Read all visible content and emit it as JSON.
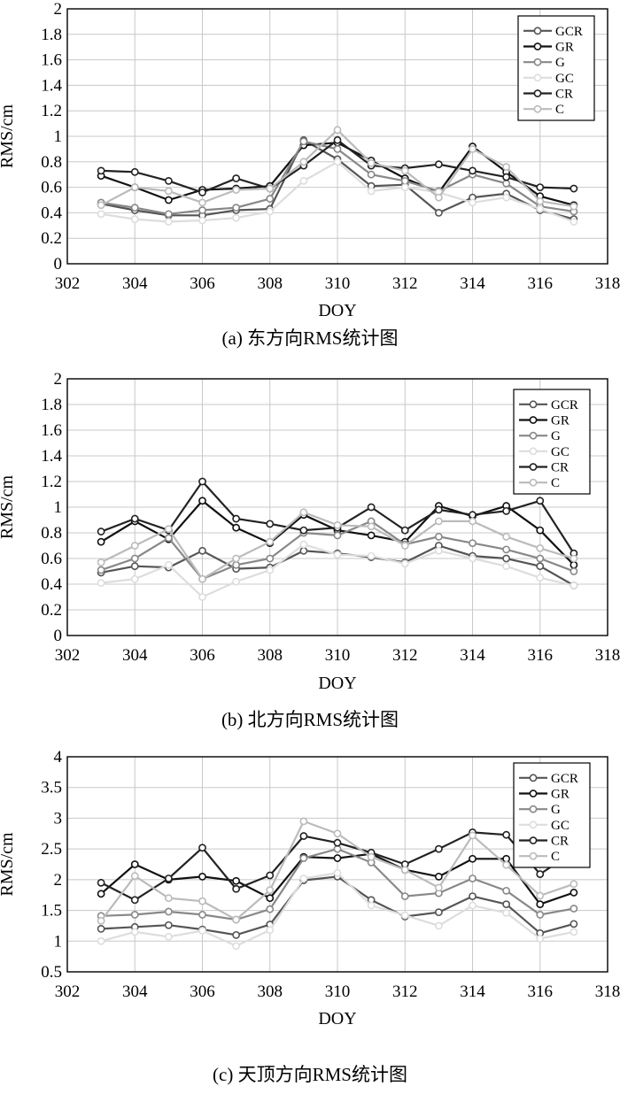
{
  "chart_data": [
    {
      "type": "line",
      "caption": "(a) 东方向RMS统计图",
      "xlabel": "DOY",
      "ylabel": "RMS/cm",
      "xlim": [
        302,
        318
      ],
      "ylim": [
        0,
        2
      ],
      "xticks": [
        "302",
        "304",
        "306",
        "308",
        "310",
        "312",
        "314",
        "316",
        "318"
      ],
      "yticks": [
        "0",
        "0.2",
        "0.4",
        "0.6",
        "0.8",
        "1",
        "1.2",
        "1.4",
        "1.6",
        "1.8",
        "2"
      ],
      "grid": true,
      "legend_position": "top-right",
      "x": [
        303,
        304,
        305,
        306,
        307,
        308,
        309,
        310,
        311,
        312,
        313,
        314,
        315,
        316,
        317
      ],
      "series": [
        {
          "name": "GCR",
          "color": "#555555",
          "values": [
            0.47,
            0.42,
            0.38,
            0.38,
            0.42,
            0.43,
            0.97,
            0.82,
            0.61,
            0.62,
            0.4,
            0.52,
            0.55,
            0.42,
            0.35
          ]
        },
        {
          "name": "GR",
          "color": "#111111",
          "values": [
            0.69,
            0.6,
            0.5,
            0.58,
            0.59,
            0.61,
            0.93,
            0.95,
            0.81,
            0.67,
            0.56,
            0.92,
            0.72,
            0.53,
            0.46
          ]
        },
        {
          "name": "G",
          "color": "#888888",
          "values": [
            0.48,
            0.44,
            0.39,
            0.42,
            0.44,
            0.51,
            0.96,
            0.9,
            0.7,
            0.65,
            0.57,
            0.7,
            0.63,
            0.45,
            0.41
          ]
        },
        {
          "name": "GC",
          "color": "#dddddd",
          "values": [
            0.39,
            0.35,
            0.33,
            0.34,
            0.36,
            0.41,
            0.65,
            0.8,
            0.57,
            0.6,
            0.56,
            0.48,
            0.52,
            0.43,
            0.33
          ]
        },
        {
          "name": "CR",
          "color": "#222222",
          "values": [
            0.73,
            0.72,
            0.65,
            0.56,
            0.67,
            0.59,
            0.77,
            0.97,
            0.77,
            0.75,
            0.78,
            0.73,
            0.68,
            0.6,
            0.59
          ]
        },
        {
          "name": "C",
          "color": "#bbbbbb",
          "values": [
            0.46,
            0.6,
            0.57,
            0.48,
            0.58,
            0.59,
            0.8,
            1.05,
            0.79,
            0.73,
            0.52,
            0.9,
            0.76,
            0.49,
            0.45
          ]
        }
      ]
    },
    {
      "type": "line",
      "caption": "(b) 北方向RMS统计图",
      "xlabel": "DOY",
      "ylabel": "RMS/cm",
      "xlim": [
        302,
        318
      ],
      "ylim": [
        0,
        2
      ],
      "xticks": [
        "302",
        "304",
        "306",
        "308",
        "310",
        "312",
        "314",
        "316",
        "318"
      ],
      "yticks": [
        "0",
        "0.2",
        "0.4",
        "0.6",
        "0.8",
        "1",
        "1.2",
        "1.4",
        "1.6",
        "1.8",
        "2"
      ],
      "grid": true,
      "legend_position": "top-right",
      "x": [
        303,
        304,
        305,
        306,
        307,
        308,
        309,
        310,
        311,
        312,
        313,
        314,
        315,
        316,
        317
      ],
      "series": [
        {
          "name": "GCR",
          "color": "#555555",
          "values": [
            0.49,
            0.54,
            0.53,
            0.66,
            0.52,
            0.53,
            0.66,
            0.64,
            0.61,
            0.57,
            0.7,
            0.62,
            0.6,
            0.54,
            0.39
          ]
        },
        {
          "name": "GR",
          "color": "#111111",
          "values": [
            0.73,
            0.89,
            0.75,
            1.05,
            0.84,
            0.72,
            0.94,
            0.82,
            0.78,
            0.73,
            1.01,
            0.93,
            1.01,
            0.82,
            0.55
          ]
        },
        {
          "name": "G",
          "color": "#888888",
          "values": [
            0.51,
            0.6,
            0.76,
            0.44,
            0.55,
            0.6,
            0.8,
            0.78,
            0.89,
            0.71,
            0.77,
            0.72,
            0.67,
            0.6,
            0.5
          ]
        },
        {
          "name": "GC",
          "color": "#dddddd",
          "values": [
            0.41,
            0.44,
            0.55,
            0.3,
            0.42,
            0.51,
            0.71,
            0.63,
            0.62,
            0.56,
            0.66,
            0.6,
            0.54,
            0.45,
            0.39
          ]
        },
        {
          "name": "CR",
          "color": "#222222",
          "values": [
            0.81,
            0.91,
            0.82,
            1.2,
            0.91,
            0.87,
            0.82,
            0.84,
            1.0,
            0.82,
            0.98,
            0.94,
            0.97,
            1.05,
            0.64
          ]
        },
        {
          "name": "C",
          "color": "#bbbbbb",
          "values": [
            0.57,
            0.7,
            0.83,
            0.44,
            0.6,
            0.73,
            0.96,
            0.86,
            0.85,
            0.7,
            0.89,
            0.89,
            0.77,
            0.68,
            0.6
          ]
        }
      ]
    },
    {
      "type": "line",
      "caption": "(c) 天顶方向RMS统计图",
      "xlabel": "DOY",
      "ylabel": "RMS/cm",
      "xlim": [
        302,
        318
      ],
      "ylim": [
        0.5,
        4
      ],
      "xticks": [
        "302",
        "304",
        "306",
        "308",
        "310",
        "312",
        "314",
        "316",
        "318"
      ],
      "yticks": [
        "0.5",
        "1",
        "1.5",
        "2",
        "2.5",
        "3",
        "3.5",
        "4"
      ],
      "grid": true,
      "legend_position": "top-right",
      "x": [
        303,
        304,
        305,
        306,
        307,
        308,
        309,
        310,
        311,
        312,
        313,
        314,
        315,
        316,
        317
      ],
      "series": [
        {
          "name": "GCR",
          "color": "#555555",
          "values": [
            1.2,
            1.23,
            1.26,
            1.19,
            1.1,
            1.27,
            1.99,
            2.05,
            1.67,
            1.4,
            1.47,
            1.73,
            1.6,
            1.13,
            1.28
          ]
        },
        {
          "name": "GR",
          "color": "#111111",
          "values": [
            1.77,
            2.25,
            2.0,
            2.05,
            1.98,
            1.7,
            2.37,
            2.35,
            2.42,
            2.16,
            2.05,
            2.34,
            2.34,
            1.6,
            1.79
          ]
        },
        {
          "name": "G",
          "color": "#888888",
          "values": [
            1.41,
            1.43,
            1.48,
            1.43,
            1.35,
            1.52,
            2.35,
            2.5,
            2.28,
            1.73,
            1.78,
            2.02,
            1.82,
            1.43,
            1.53
          ]
        },
        {
          "name": "GC",
          "color": "#dddddd",
          "values": [
            1.0,
            1.15,
            1.07,
            1.17,
            0.92,
            1.18,
            2.02,
            2.11,
            1.58,
            1.42,
            1.25,
            1.58,
            1.46,
            1.04,
            1.15
          ]
        },
        {
          "name": "CR",
          "color": "#222222",
          "values": [
            1.95,
            1.67,
            2.02,
            2.52,
            1.85,
            2.07,
            2.71,
            2.6,
            2.44,
            2.25,
            2.5,
            2.77,
            2.73,
            2.09,
            2.46
          ]
        },
        {
          "name": "C",
          "color": "#bbbbbb",
          "values": [
            1.33,
            2.06,
            1.7,
            1.65,
            1.35,
            1.83,
            2.95,
            2.75,
            2.37,
            2.16,
            1.87,
            2.72,
            2.24,
            1.74,
            1.93
          ]
        }
      ]
    }
  ]
}
